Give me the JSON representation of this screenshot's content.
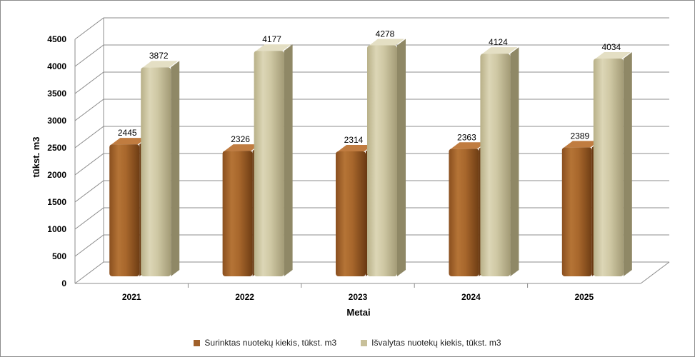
{
  "chart_data": {
    "type": "bar",
    "title": "",
    "xlabel": "Metai",
    "ylabel": "tūkst. m3",
    "categories": [
      "2021",
      "2022",
      "2023",
      "2024",
      "2025"
    ],
    "series": [
      {
        "name": "Surinktas nuotekų kiekis, tūkst. m3",
        "values": [
          2445,
          2326,
          2314,
          2363,
          2389
        ],
        "color": "#a0602a"
      },
      {
        "name": "Išvalytas nuotekų kiekis, tūkst. m3",
        "values": [
          3872,
          4177,
          4278,
          4124,
          4034
        ],
        "color": "#c8c09a"
      }
    ],
    "ylim": [
      0,
      4500
    ],
    "yticks": [
      0,
      500,
      1000,
      1500,
      2000,
      2500,
      3000,
      3500,
      4000,
      4500
    ],
    "grid": true,
    "three_d": true,
    "legend_position": "bottom"
  },
  "colors": {
    "gridline": "#8c8c8c",
    "axis_text": "#000000",
    "border": "#8c8c8c"
  }
}
